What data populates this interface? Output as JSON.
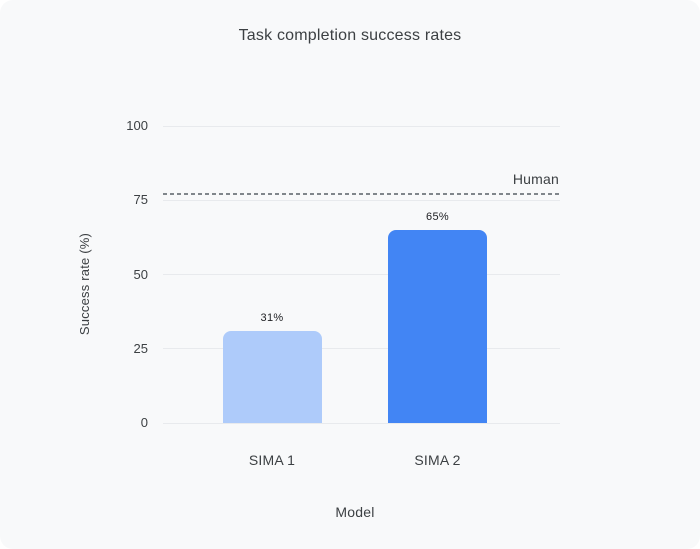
{
  "chart_data": {
    "type": "bar",
    "title": "Task completion success rates",
    "xlabel": "Model",
    "ylabel": "Success rate (%)",
    "categories": [
      "SIMA 1",
      "SIMA 2"
    ],
    "values": [
      31,
      65
    ],
    "value_labels": [
      "31%",
      "65%"
    ],
    "bar_colors": [
      "#aecbfa",
      "#4285f4"
    ],
    "ylim": [
      0,
      100
    ],
    "yticks": [
      0,
      25,
      50,
      75,
      100
    ],
    "grid": "horizontal",
    "legend": "none",
    "reference_line": {
      "label": "Human",
      "value": 77,
      "style": "dashed",
      "color": "#80868b"
    }
  },
  "colors": {
    "card_background": "#f8f9fa",
    "page_background": "#ffffff",
    "gridline": "#e8eaed",
    "text": "#3c4043",
    "value_text": "#202124"
  }
}
